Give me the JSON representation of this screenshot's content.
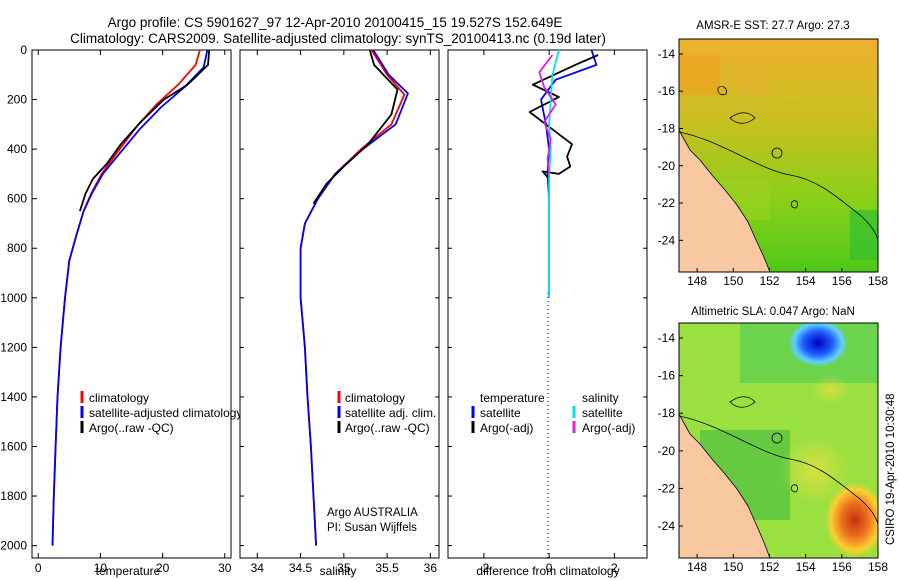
{
  "header": {
    "line1": "Argo profile: CS 5901627_97 12-Apr-2010 20100415_15 19.527S 152.649E",
    "line2": "Climatology: CARS2009. Satellite-adjusted climatology: synTS_20100413.nc (0.19d later)"
  },
  "colors": {
    "clim": "#ff0000",
    "sat": "#0000ff",
    "argo": "#000000",
    "sal_sat": "#00e5e5",
    "sal_argo": "#e020e0"
  },
  "chart_data": [
    {
      "type": "line",
      "id": "temperature",
      "xlabel": "temperature",
      "ylabel": "",
      "xlim": [
        -1,
        31
      ],
      "ylim": [
        2050,
        0
      ],
      "xticks": [
        "0",
        "10",
        "20",
        "30"
      ],
      "yticks": [
        "0",
        "200",
        "400",
        "600",
        "800",
        "1000",
        "1200",
        "1400",
        "1600",
        "1800",
        "2000"
      ],
      "legend": {
        "items": [
          "climatology",
          "satellite-adjusted climatology",
          "Argo(..raw -QC)"
        ]
      },
      "series": [
        {
          "name": "climatology",
          "color": "clim",
          "points": [
            [
              26,
              0
            ],
            [
              25.3,
              60
            ],
            [
              22.5,
              140
            ],
            [
              19,
              220
            ],
            [
              15.8,
              310
            ],
            [
              12.8,
              410
            ],
            [
              10.2,
              500
            ],
            [
              8.5,
              580
            ],
            [
              7.3,
              650
            ],
            [
              6.1,
              750
            ],
            [
              5,
              850
            ],
            [
              4.3,
              1000
            ],
            [
              3.6,
              1200
            ],
            [
              3.1,
              1400
            ],
            [
              2.8,
              1600
            ],
            [
              2.5,
              1800
            ],
            [
              2.3,
              2000
            ]
          ]
        },
        {
          "name": "satellite-adjusted climatology",
          "color": "sat",
          "points": [
            [
              27.2,
              0
            ],
            [
              26.6,
              70
            ],
            [
              23.5,
              150
            ],
            [
              19.8,
              230
            ],
            [
              16.3,
              320
            ],
            [
              13,
              420
            ],
            [
              10.4,
              500
            ],
            [
              8.6,
              580
            ],
            [
              7.3,
              650
            ],
            [
              6.1,
              750
            ],
            [
              5,
              850
            ],
            [
              4.3,
              1000
            ],
            [
              3.6,
              1200
            ],
            [
              3.1,
              1400
            ],
            [
              2.8,
              1600
            ],
            [
              2.5,
              1800
            ],
            [
              2.3,
              2000
            ]
          ]
        },
        {
          "name": "Argo(..raw -QC)",
          "color": "argo",
          "points": [
            [
              27.5,
              0
            ],
            [
              27.3,
              60
            ],
            [
              24,
              140
            ],
            [
              20.2,
              200
            ],
            [
              16.5,
              290
            ],
            [
              13.3,
              380
            ],
            [
              11,
              460
            ],
            [
              8.8,
              520
            ],
            [
              7.6,
              580
            ],
            [
              6.7,
              650
            ]
          ]
        }
      ]
    },
    {
      "type": "line",
      "id": "salinity",
      "xlabel": "salinity",
      "ylabel": "",
      "xlim": [
        33.8,
        36.1
      ],
      "ylim": [
        2050,
        0
      ],
      "xticks": [
        "34",
        "34.5",
        "35",
        "35.5",
        "36"
      ],
      "yticks": [],
      "legend": {
        "items": [
          "climatology",
          "satellite adj. clim.",
          "Argo(..raw -QC)"
        ]
      },
      "annotation": [
        "Argo AUSTRALIA",
        "PI: Susan Wijffels"
      ],
      "series": [
        {
          "name": "climatology",
          "color": "clim",
          "points": [
            [
              35.32,
              0
            ],
            [
              35.5,
              100
            ],
            [
              35.7,
              180
            ],
            [
              35.55,
              300
            ],
            [
              35.2,
              400
            ],
            [
              34.9,
              500
            ],
            [
              34.7,
              600
            ],
            [
              34.55,
              700
            ],
            [
              34.5,
              800
            ],
            [
              34.5,
              1000
            ],
            [
              34.55,
              1200
            ],
            [
              34.58,
              1400
            ],
            [
              34.62,
              1600
            ],
            [
              34.65,
              1800
            ],
            [
              34.68,
              2000
            ]
          ]
        },
        {
          "name": "satellite adj. clim.",
          "color": "sat",
          "points": [
            [
              35.34,
              0
            ],
            [
              35.52,
              100
            ],
            [
              35.74,
              175
            ],
            [
              35.6,
              300
            ],
            [
              35.22,
              400
            ],
            [
              34.9,
              500
            ],
            [
              34.7,
              600
            ],
            [
              34.55,
              700
            ],
            [
              34.5,
              800
            ],
            [
              34.5,
              1000
            ],
            [
              34.55,
              1200
            ],
            [
              34.58,
              1400
            ],
            [
              34.62,
              1600
            ],
            [
              34.65,
              1800
            ],
            [
              34.68,
              2000
            ]
          ]
        },
        {
          "name": "Argo(..raw -QC)",
          "color": "argo",
          "points": [
            [
              35.3,
              0
            ],
            [
              35.35,
              60
            ],
            [
              35.62,
              160
            ],
            [
              35.55,
              260
            ],
            [
              35.28,
              380
            ],
            [
              35,
              470
            ],
            [
              34.8,
              540
            ],
            [
              34.65,
              620
            ]
          ]
        }
      ]
    },
    {
      "type": "line",
      "id": "difference",
      "xlabel": "difference from climatology",
      "ylabel": "",
      "xlim": [
        -3.1,
        3
      ],
      "ylim": [
        2050,
        0
      ],
      "xticks": [
        "-2",
        "0",
        "2"
      ],
      "yticks": [],
      "legend": {
        "temperature_title": "temperature",
        "salinity_title": "salinity",
        "temperature_items": [
          "satellite",
          "Argo(-adj)"
        ],
        "salinity_items": [
          "satellite",
          "Argo(-adj)"
        ]
      },
      "series": [
        {
          "name": "temperature satellite",
          "color": "sat",
          "points": [
            [
              1.3,
              0
            ],
            [
              1.45,
              60
            ],
            [
              0.2,
              120
            ],
            [
              -0.25,
              200
            ],
            [
              -0.1,
              300
            ],
            [
              0,
              400
            ],
            [
              -0.05,
              500
            ],
            [
              0,
              600
            ],
            [
              0,
              700
            ],
            [
              0,
              800
            ],
            [
              0,
              900
            ],
            [
              0,
              1000
            ]
          ]
        },
        {
          "name": "temperature Argo(-adj)",
          "color": "argo",
          "points": [
            [
              1.5,
              20
            ],
            [
              0.8,
              60
            ],
            [
              -0.5,
              140
            ],
            [
              0.3,
              190
            ],
            [
              -0.6,
              250
            ],
            [
              0.2,
              330
            ],
            [
              0.7,
              380
            ],
            [
              0.55,
              430
            ],
            [
              0.65,
              470
            ],
            [
              0.3,
              500
            ],
            [
              -0.2,
              490
            ],
            [
              0,
              520
            ]
          ]
        },
        {
          "name": "salinity satellite",
          "color": "sal_sat",
          "points": [
            [
              0.3,
              0
            ],
            [
              0.1,
              100
            ],
            [
              0.05,
              200
            ],
            [
              0,
              300
            ],
            [
              0.05,
              400
            ],
            [
              0,
              500
            ],
            [
              0,
              600
            ],
            [
              0,
              800
            ],
            [
              0,
              1000
            ]
          ]
        },
        {
          "name": "salinity Argo(-adj)",
          "color": "sal_argo",
          "points": [
            [
              0.1,
              20
            ],
            [
              -0.3,
              90
            ],
            [
              -0.15,
              150
            ],
            [
              0.2,
              220
            ],
            [
              -0.15,
              290
            ],
            [
              0.05,
              360
            ],
            [
              -0.05,
              440
            ],
            [
              0,
              500
            ]
          ]
        }
      ]
    },
    {
      "type": "heatmap",
      "id": "sst-map",
      "title": "AMSR-E SST: 27.7 Argo: 27.3",
      "xlim": [
        147,
        158
      ],
      "ylim": [
        -25.7,
        -13.2
      ],
      "xticks": [
        "148",
        "150",
        "152",
        "154",
        "156",
        "158"
      ],
      "yticks": [
        "-14",
        "-16",
        "-18",
        "-20",
        "-22",
        "-24"
      ]
    },
    {
      "type": "heatmap",
      "id": "sla-map",
      "title": "Altimetric SLA: 0.047 Argo: NaN",
      "xlim": [
        147,
        158
      ],
      "ylim": [
        -25.7,
        -13.2
      ],
      "xticks": [
        "148",
        "150",
        "152",
        "154",
        "156",
        "158"
      ],
      "yticks": [
        "-14",
        "-16",
        "-18",
        "-20",
        "-22",
        "-24"
      ]
    }
  ],
  "side_label": "CSIRO 19-Apr-2010 10:30:48"
}
